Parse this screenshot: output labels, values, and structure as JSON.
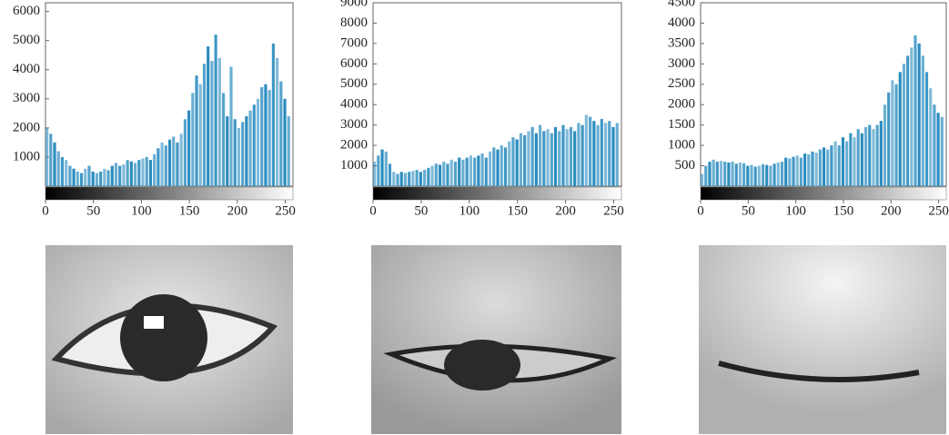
{
  "chart_data": [
    {
      "type": "bar",
      "color": "#2a8cbf",
      "x": [
        0,
        4,
        8,
        12,
        16,
        20,
        24,
        28,
        32,
        36,
        40,
        44,
        48,
        52,
        56,
        60,
        64,
        68,
        72,
        76,
        80,
        84,
        88,
        92,
        96,
        100,
        104,
        108,
        112,
        116,
        120,
        124,
        128,
        132,
        136,
        140,
        144,
        148,
        152,
        156,
        160,
        164,
        168,
        172,
        176,
        180,
        184,
        188,
        192,
        196,
        200,
        204,
        208,
        212,
        216,
        220,
        224,
        228,
        232,
        236,
        240,
        244,
        248,
        252
      ],
      "values": [
        2000,
        1800,
        1500,
        1200,
        1000,
        900,
        700,
        600,
        500,
        450,
        600,
        700,
        500,
        450,
        500,
        600,
        550,
        700,
        800,
        700,
        750,
        900,
        850,
        800,
        900,
        950,
        1000,
        900,
        1100,
        1300,
        1500,
        1400,
        1600,
        1700,
        1500,
        1800,
        2300,
        2600,
        3200,
        3800,
        3500,
        4200,
        4800,
        4300,
        5200,
        4400,
        3200,
        2400,
        4100,
        2300,
        2000,
        2200,
        2400,
        2600,
        2800,
        3000,
        3400,
        3500,
        3300,
        4900,
        4400,
        3600,
        3000,
        2400
      ],
      "xlim": [
        0,
        258
      ],
      "xticks": [
        0,
        50,
        100,
        150,
        200,
        250
      ],
      "ylim": [
        0,
        6300
      ],
      "yticks": [
        1000,
        2000,
        3000,
        4000,
        5000,
        6000
      ]
    },
    {
      "type": "bar",
      "color": "#2a8cbf",
      "x": [
        0,
        4,
        8,
        12,
        16,
        20,
        24,
        28,
        32,
        36,
        40,
        44,
        48,
        52,
        56,
        60,
        64,
        68,
        72,
        76,
        80,
        84,
        88,
        92,
        96,
        100,
        104,
        108,
        112,
        116,
        120,
        124,
        128,
        132,
        136,
        140,
        144,
        148,
        152,
        156,
        160,
        164,
        168,
        172,
        176,
        180,
        184,
        188,
        192,
        196,
        200,
        204,
        208,
        212,
        216,
        220,
        224,
        228,
        232,
        236,
        240,
        244,
        248,
        252
      ],
      "values": [
        1200,
        1500,
        1800,
        1700,
        1100,
        700,
        600,
        700,
        650,
        700,
        750,
        800,
        700,
        800,
        900,
        1000,
        1100,
        1050,
        1200,
        1100,
        1300,
        1200,
        1400,
        1300,
        1400,
        1500,
        1400,
        1500,
        1600,
        1400,
        1700,
        1900,
        1800,
        2000,
        1900,
        2200,
        2400,
        2300,
        2600,
        2500,
        2700,
        2900,
        2600,
        3000,
        2700,
        2800,
        2600,
        2900,
        2700,
        3000,
        2800,
        2900,
        2700,
        3100,
        3000,
        3500,
        3400,
        3200,
        3000,
        3300,
        3100,
        3200,
        2900,
        3100
      ],
      "xlim": [
        0,
        258
      ],
      "xticks": [
        0,
        50,
        100,
        150,
        200,
        250
      ],
      "ylim": [
        0,
        9000
      ],
      "yticks": [
        1000,
        2000,
        3000,
        4000,
        5000,
        6000,
        7000,
        8000,
        9000
      ]
    },
    {
      "type": "bar",
      "color": "#2a8cbf",
      "x": [
        0,
        4,
        8,
        12,
        16,
        20,
        24,
        28,
        32,
        36,
        40,
        44,
        48,
        52,
        56,
        60,
        64,
        68,
        72,
        76,
        80,
        84,
        88,
        92,
        96,
        100,
        104,
        108,
        112,
        116,
        120,
        124,
        128,
        132,
        136,
        140,
        144,
        148,
        152,
        156,
        160,
        164,
        168,
        172,
        176,
        180,
        184,
        188,
        192,
        196,
        200,
        204,
        208,
        212,
        216,
        220,
        224,
        228,
        232,
        236,
        240,
        244,
        248,
        252
      ],
      "values": [
        300,
        500,
        600,
        650,
        600,
        620,
        600,
        580,
        600,
        550,
        580,
        560,
        500,
        520,
        480,
        500,
        540,
        520,
        500,
        550,
        580,
        600,
        700,
        680,
        720,
        750,
        700,
        800,
        780,
        850,
        820,
        900,
        950,
        900,
        1000,
        1100,
        1000,
        1200,
        1100,
        1300,
        1200,
        1400,
        1300,
        1450,
        1500,
        1400,
        1500,
        1600,
        2000,
        2300,
        2600,
        2500,
        2800,
        3000,
        3200,
        3400,
        3700,
        3500,
        3200,
        2800,
        2400,
        2000,
        1800,
        1700
      ],
      "xlim": [
        0,
        258
      ],
      "xticks": [
        0,
        50,
        100,
        150,
        200,
        250
      ],
      "ylim": [
        0,
        4500
      ],
      "yticks": [
        500,
        1000,
        1500,
        2000,
        2500,
        3000,
        3500,
        4000,
        4500
      ]
    }
  ]
}
